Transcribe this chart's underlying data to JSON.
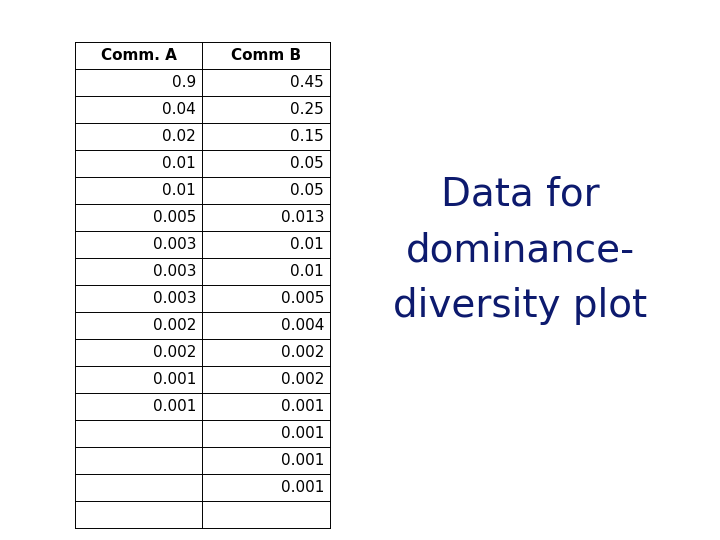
{
  "col_headers": [
    "Comm. A",
    "Comm B"
  ],
  "comm_a": [
    "0.9",
    "0.04",
    "0.02",
    "0.01",
    "0.01",
    "0.005",
    "0.003",
    "0.003",
    "0.003",
    "0.002",
    "0.002",
    "0.001",
    "0.001",
    "",
    "",
    "",
    ""
  ],
  "comm_b": [
    "0.45",
    "0.25",
    "0.15",
    "0.05",
    "0.05",
    "0.013",
    "0.01",
    "0.01",
    "0.005",
    "0.004",
    "0.002",
    "0.002",
    "0.001",
    "0.001",
    "0.001",
    "0.001",
    ""
  ],
  "label_text": "Data for\ndominance-\ndiversity plot",
  "label_color": "#0d1a6e",
  "label_fontsize": 28,
  "bg_color": "#ffffff",
  "border_color": "#000000",
  "cell_fontsize": 11,
  "header_fontsize": 11
}
